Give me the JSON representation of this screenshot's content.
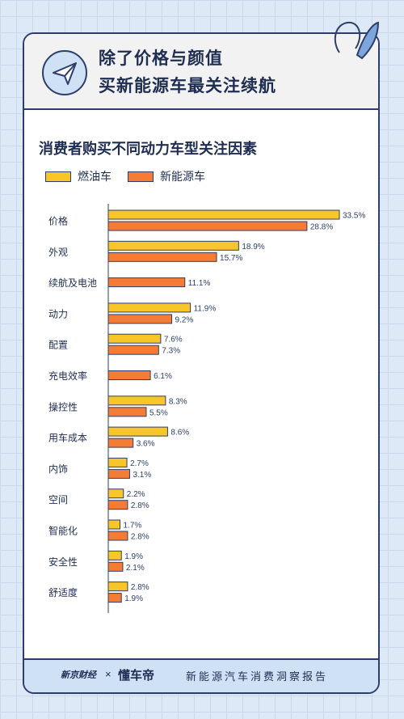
{
  "header": {
    "title_line1": "除了价格与颜值",
    "title_line2": "买新能源车最关注续航"
  },
  "footer": {
    "logo_left": "新京财经",
    "separator": "×",
    "logo_right": "懂车帝",
    "report_title": "新能源汽车消费洞察报告"
  },
  "colors": {
    "fuel": "#f9c62a",
    "ev": "#f57c35",
    "outline": "#2d3e6a"
  },
  "chart_data": {
    "type": "bar",
    "title": "消费者购买不同动力车型关注因素",
    "orientation": "horizontal",
    "legend_position": "top-left",
    "categories": [
      "价格",
      "外观",
      "续航及电池",
      "动力",
      "配置",
      "充电效率",
      "操控性",
      "用车成本",
      "内饰",
      "空间",
      "智能化",
      "安全性",
      "舒适度"
    ],
    "series": [
      {
        "name": "燃油车",
        "values": [
          33.5,
          18.9,
          null,
          11.9,
          7.6,
          null,
          8.3,
          8.6,
          2.7,
          2.2,
          1.7,
          1.9,
          2.8
        ],
        "labels": [
          "33.5%",
          "18.9%",
          null,
          "11.9%",
          "7.6%",
          null,
          "8.3%",
          "8.6%",
          "2.7%",
          "2.2%",
          "1.7%",
          "1.9%",
          "2.8%"
        ]
      },
      {
        "name": "新能源车",
        "values": [
          28.8,
          15.7,
          11.1,
          9.2,
          7.3,
          6.1,
          5.5,
          3.6,
          3.1,
          2.8,
          2.8,
          2.1,
          1.9
        ],
        "labels": [
          "28.8%",
          "15.7%",
          "11.1%",
          "9.2%",
          "7.3%",
          "6.1%",
          "5.5%",
          "3.6%",
          "3.1%",
          "2.8%",
          "2.8%",
          "2.1%",
          "1.9%"
        ]
      }
    ],
    "xlim": [
      0,
      33.5
    ]
  }
}
